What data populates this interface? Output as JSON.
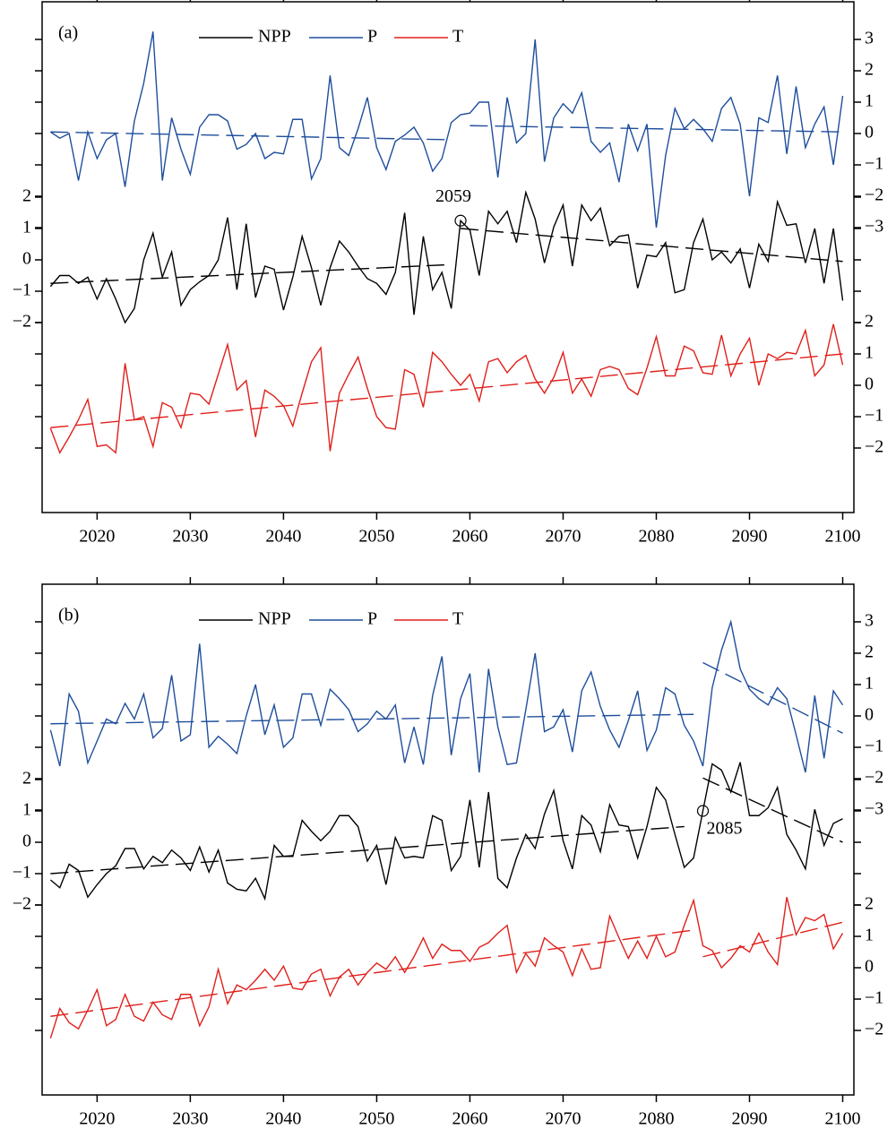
{
  "chart_data": [
    {
      "type": "line",
      "label": "(a)",
      "x": [
        2015,
        2016,
        2017,
        2018,
        2019,
        2020,
        2021,
        2022,
        2023,
        2024,
        2025,
        2026,
        2027,
        2028,
        2029,
        2030,
        2031,
        2032,
        2033,
        2034,
        2035,
        2036,
        2037,
        2038,
        2039,
        2040,
        2041,
        2042,
        2043,
        2044,
        2045,
        2046,
        2047,
        2048,
        2049,
        2050,
        2051,
        2052,
        2053,
        2054,
        2055,
        2056,
        2057,
        2058,
        2059,
        2060,
        2061,
        2062,
        2063,
        2064,
        2065,
        2066,
        2067,
        2068,
        2069,
        2070,
        2071,
        2072,
        2073,
        2074,
        2075,
        2076,
        2077,
        2078,
        2079,
        2080,
        2081,
        2082,
        2083,
        2084,
        2085,
        2086,
        2087,
        2088,
        2089,
        2090,
        2091,
        2092,
        2093,
        2094,
        2095,
        2096,
        2097,
        2098,
        2099,
        2100
      ],
      "xlim": [
        2014.1,
        2101.2
      ],
      "xticks": [
        2020,
        2030,
        2040,
        2050,
        2060,
        2070,
        2080,
        2090,
        2100
      ],
      "series": [
        {
          "name": "NPP",
          "color": "#000000",
          "yaxis": "left",
          "ylim": [
            -2,
            2
          ],
          "yticks": [
            {
              "value": -2,
              "label": "−2"
            },
            {
              "value": -1,
              "label": "−1"
            },
            0,
            1,
            2
          ],
          "values": [
            -0.85,
            -0.5,
            -0.5,
            -0.75,
            -0.55,
            -1.25,
            -0.6,
            -1.25,
            -2.0,
            -1.55,
            0,
            0.85,
            -0.55,
            0.25,
            -1.45,
            -0.95,
            -0.7,
            -0.5,
            0,
            1.35,
            -0.95,
            1.15,
            -1.2,
            -0.2,
            -0.3,
            -1.6,
            -0.55,
            0.75,
            -0.25,
            -1.45,
            -0.25,
            0.6,
            0.25,
            -0.2,
            -0.6,
            -0.75,
            -1.1,
            -0.4,
            1.5,
            -1.75,
            0.75,
            -0.95,
            -0.4,
            -1.55,
            1.25,
            0.95,
            -0.5,
            1.55,
            1.15,
            1.55,
            0.55,
            2.15,
            1.3,
            -0.1,
            1.05,
            1.75,
            -0.2,
            1.75,
            1.25,
            1.65,
            0.45,
            0.75,
            0.8,
            -0.9,
            0.15,
            0.1,
            0.55,
            -1.05,
            -0.95,
            0.55,
            1.3,
            0,
            0.25,
            -0.1,
            0.35,
            -0.9,
            0.5,
            -0.05,
            1.85,
            1.1,
            1.15,
            -0.1,
            1.0,
            -0.75,
            1.0,
            -1.3
          ],
          "trend": [
            {
              "x": [
                2015,
                2058
              ],
              "values": [
                -0.75,
                -0.15
              ]
            },
            {
              "x": [
                2059,
                2100
              ],
              "values": [
                1.0,
                -0.05
              ]
            }
          ],
          "breakpoint": 2059
        },
        {
          "name": "P",
          "color": "#1f4e9c",
          "yaxis": "right",
          "ylim": [
            -3,
            3
          ],
          "yticks": [
            {
              "value": -3,
              "label": "−3"
            },
            {
              "value": -2,
              "label": "−2"
            },
            {
              "value": -1,
              "label": "−1"
            },
            0,
            1,
            2,
            3
          ],
          "values": [
            0.05,
            -0.15,
            0,
            -1.5,
            0.05,
            -0.8,
            -0.2,
            0,
            -1.7,
            0.4,
            1.6,
            3.25,
            -1.5,
            0.5,
            -0.5,
            -1.3,
            0.2,
            0.6,
            0.6,
            0.4,
            -0.5,
            -0.35,
            0,
            -0.8,
            -0.6,
            -0.65,
            0.45,
            0.45,
            -1.45,
            -0.8,
            1.85,
            -0.45,
            -0.7,
            0.15,
            1.15,
            -0.45,
            -1.15,
            -0.25,
            -0.05,
            0.2,
            -0.3,
            -1.2,
            -0.8,
            0.35,
            0.6,
            0.65,
            1.0,
            1.0,
            -1.4,
            1.15,
            -0.3,
            0,
            3.0,
            -0.9,
            0.5,
            0.95,
            0.65,
            1.3,
            -0.25,
            -0.6,
            -0.3,
            -1.55,
            0.3,
            -0.55,
            0.3,
            -3.0,
            -0.7,
            0.8,
            0.15,
            0.45,
            0.15,
            -0.25,
            0.8,
            1.15,
            0.3,
            -2.0,
            0.5,
            0.35,
            1.85,
            -0.65,
            1.5,
            -0.45,
            0.3,
            0.85,
            -1.0,
            1.2
          ],
          "trend": [
            {
              "x": [
                2015,
                2058
              ],
              "values": [
                0.05,
                -0.2
              ]
            },
            {
              "x": [
                2060,
                2100
              ],
              "values": [
                0.25,
                0.05
              ]
            }
          ]
        },
        {
          "name": "T",
          "color": "#e0201b",
          "yaxis": "right",
          "ylim": [
            -2,
            2
          ],
          "yticks": [
            {
              "value": -2,
              "label": "−2"
            },
            {
              "value": -1,
              "label": "−1"
            },
            0,
            1,
            2
          ],
          "values": [
            -1.37,
            -2.15,
            -1.65,
            -1.1,
            -0.45,
            -1.95,
            -1.9,
            -2.15,
            0.7,
            -1.1,
            -1.0,
            -1.95,
            -0.55,
            -0.7,
            -1.35,
            -0.25,
            -0.3,
            -0.6,
            0.35,
            1.3,
            -0.15,
            0.15,
            -1.65,
            -0.15,
            -0.35,
            -0.65,
            -1.3,
            -0.25,
            0.75,
            1.2,
            -2.1,
            -0.25,
            0.35,
            0.9,
            -0.1,
            -1.0,
            -1.35,
            -1.4,
            0.5,
            0.35,
            -0.7,
            1.05,
            0.75,
            0.35,
            0,
            0.35,
            -0.5,
            0.75,
            0.85,
            0.4,
            0.75,
            0.95,
            0.2,
            -0.25,
            0.25,
            1.05,
            -0.25,
            0.2,
            -0.35,
            0.5,
            0.6,
            0.5,
            -0.1,
            -0.3,
            0.55,
            1.55,
            0.3,
            0.3,
            1.25,
            1.1,
            0.4,
            0.35,
            1.6,
            0.3,
            1.0,
            1.5,
            0,
            1.0,
            0.85,
            1.05,
            1.0,
            1.75,
            0.3,
            0.65,
            1.95,
            0.65
          ],
          "trend": [
            {
              "x": [
                2015,
                2100
              ],
              "values": [
                -1.35,
                1.0
              ]
            }
          ]
        }
      ]
    },
    {
      "type": "line",
      "label": "(b)",
      "x": [
        2015,
        2016,
        2017,
        2018,
        2019,
        2020,
        2021,
        2022,
        2023,
        2024,
        2025,
        2026,
        2027,
        2028,
        2029,
        2030,
        2031,
        2032,
        2033,
        2034,
        2035,
        2036,
        2037,
        2038,
        2039,
        2040,
        2041,
        2042,
        2043,
        2044,
        2045,
        2046,
        2047,
        2048,
        2049,
        2050,
        2051,
        2052,
        2053,
        2054,
        2055,
        2056,
        2057,
        2058,
        2059,
        2060,
        2061,
        2062,
        2063,
        2064,
        2065,
        2066,
        2067,
        2068,
        2069,
        2070,
        2071,
        2072,
        2073,
        2074,
        2075,
        2076,
        2077,
        2078,
        2079,
        2080,
        2081,
        2082,
        2083,
        2084,
        2085,
        2086,
        2087,
        2088,
        2089,
        2090,
        2091,
        2092,
        2093,
        2094,
        2095,
        2096,
        2097,
        2098,
        2099,
        2100
      ],
      "xlim": [
        2014.1,
        2101.2
      ],
      "xticks": [
        2020,
        2030,
        2040,
        2050,
        2060,
        2070,
        2080,
        2090,
        2100
      ],
      "series": [
        {
          "name": "NPP",
          "color": "#000000",
          "yaxis": "left",
          "ylim": [
            -2,
            2
          ],
          "yticks": [
            {
              "value": -2,
              "label": "−2"
            },
            {
              "value": -1,
              "label": "−1"
            },
            0,
            1,
            2
          ],
          "values": [
            -1.2,
            -1.45,
            -0.7,
            -0.9,
            -1.75,
            -1.35,
            -1.0,
            -0.75,
            -0.2,
            -0.2,
            -0.85,
            -0.45,
            -0.65,
            -0.25,
            -0.5,
            -0.9,
            -0.15,
            -0.95,
            -0.25,
            -1.3,
            -1.5,
            -1.55,
            -1.15,
            -1.8,
            -0.1,
            -0.45,
            -0.45,
            0.7,
            0.35,
            0.05,
            0.35,
            0.85,
            0.85,
            0.5,
            -0.6,
            -0.1,
            -1.35,
            0.15,
            -0.5,
            -0.45,
            -0.5,
            0.85,
            0.7,
            -0.9,
            -0.45,
            1.35,
            -0.8,
            1.6,
            -1.15,
            -1.45,
            -0.5,
            0.25,
            -0.2,
            0.9,
            1.65,
            0.05,
            -0.85,
            0.85,
            0.55,
            -0.3,
            1.2,
            0.55,
            0.5,
            -0.5,
            0.5,
            1.75,
            1.35,
            0.25,
            -0.8,
            -0.5,
            1.0,
            2.5,
            2.3,
            1.6,
            2.55,
            0.85,
            0.85,
            1.1,
            1.75,
            0.25,
            -0.25,
            -0.85,
            1.05,
            -0.1,
            0.6,
            0.75
          ],
          "trend": [
            {
              "x": [
                2015,
                2083
              ],
              "values": [
                -1.0,
                0.5
              ]
            },
            {
              "x": [
                2085,
                2100
              ],
              "values": [
                2.05,
                0
              ]
            }
          ],
          "breakpoint": 2085
        },
        {
          "name": "P",
          "color": "#1f4e9c",
          "yaxis": "right",
          "ylim": [
            -3,
            3
          ],
          "yticks": [
            {
              "value": -3,
              "label": "−3"
            },
            {
              "value": -2,
              "label": "−2"
            },
            {
              "value": -1,
              "label": "−1"
            },
            0,
            1,
            2,
            3
          ],
          "values": [
            -0.45,
            -1.6,
            0.7,
            0.15,
            -1.5,
            -0.8,
            -0.1,
            -0.25,
            0.4,
            -0.1,
            0.7,
            -0.7,
            -0.4,
            1.3,
            -0.8,
            -0.6,
            2.3,
            -1.0,
            -0.65,
            -0.9,
            -1.2,
            0,
            1.0,
            -0.6,
            0.35,
            -1.0,
            -0.7,
            0.7,
            0.7,
            -0.3,
            0.85,
            0.55,
            0.2,
            -0.5,
            -0.25,
            0.15,
            -0.1,
            0.35,
            -1.5,
            -0.35,
            -1.55,
            0.65,
            1.9,
            -1.25,
            0.55,
            1.35,
            -1.8,
            1.5,
            -0.35,
            -1.55,
            -1.5,
            0.2,
            2.0,
            -0.5,
            -0.35,
            0.2,
            -1.15,
            0.8,
            1.4,
            0.3,
            -0.45,
            -1.0,
            -0.15,
            0.8,
            -1.1,
            -0.45,
            0.9,
            0.7,
            -0.3,
            -0.8,
            -1.6,
            0.9,
            2.1,
            3.0,
            1.5,
            0.85,
            0.55,
            0.35,
            0.9,
            0.55,
            -0.6,
            -1.8,
            0.65,
            -1.35,
            0.8,
            0.35
          ],
          "trend": [
            {
              "x": [
                2015,
                2084
              ],
              "values": [
                -0.25,
                0.05
              ]
            },
            {
              "x": [
                2085,
                2100
              ],
              "values": [
                1.7,
                -0.55
              ]
            }
          ]
        },
        {
          "name": "T",
          "color": "#e0201b",
          "yaxis": "right",
          "ylim": [
            -2,
            2
          ],
          "yticks": [
            {
              "value": -2,
              "label": "−2"
            },
            {
              "value": -1,
              "label": "−1"
            },
            0,
            1,
            2
          ],
          "values": [
            -2.25,
            -1.3,
            -1.75,
            -1.95,
            -1.35,
            -0.7,
            -1.85,
            -1.65,
            -0.85,
            -1.55,
            -1.7,
            -1.1,
            -1.5,
            -1.65,
            -0.85,
            -0.85,
            -1.85,
            -1.25,
            -0.05,
            -1.15,
            -0.55,
            -0.7,
            -0.4,
            -0.05,
            -0.4,
            0.05,
            -0.65,
            -0.7,
            -0.2,
            -0.05,
            -0.9,
            -0.3,
            -0.05,
            -0.55,
            -0.15,
            0.15,
            -0.05,
            0.35,
            -0.15,
            0.35,
            0.95,
            0.3,
            0.75,
            0.55,
            0.55,
            0.2,
            0.65,
            0.8,
            1.1,
            1.35,
            -0.15,
            0.45,
            0.05,
            0.95,
            0.7,
            0.5,
            -0.25,
            0.6,
            -0.05,
            0,
            1.65,
            0.95,
            0.3,
            0.85,
            0.3,
            1.0,
            0.35,
            0.5,
            1.35,
            2.15,
            0.7,
            0.55,
            0,
            0.3,
            0.7,
            0.5,
            1.1,
            0.5,
            0.1,
            2.25,
            1.05,
            1.6,
            1.5,
            1.7,
            0.6,
            1.1
          ],
          "trend": [
            {
              "x": [
                2015,
                2084
              ],
              "values": [
                -1.55,
                1.2
              ]
            },
            {
              "x": [
                2085,
                2100
              ],
              "values": [
                0.35,
                1.45
              ]
            }
          ]
        }
      ]
    }
  ]
}
